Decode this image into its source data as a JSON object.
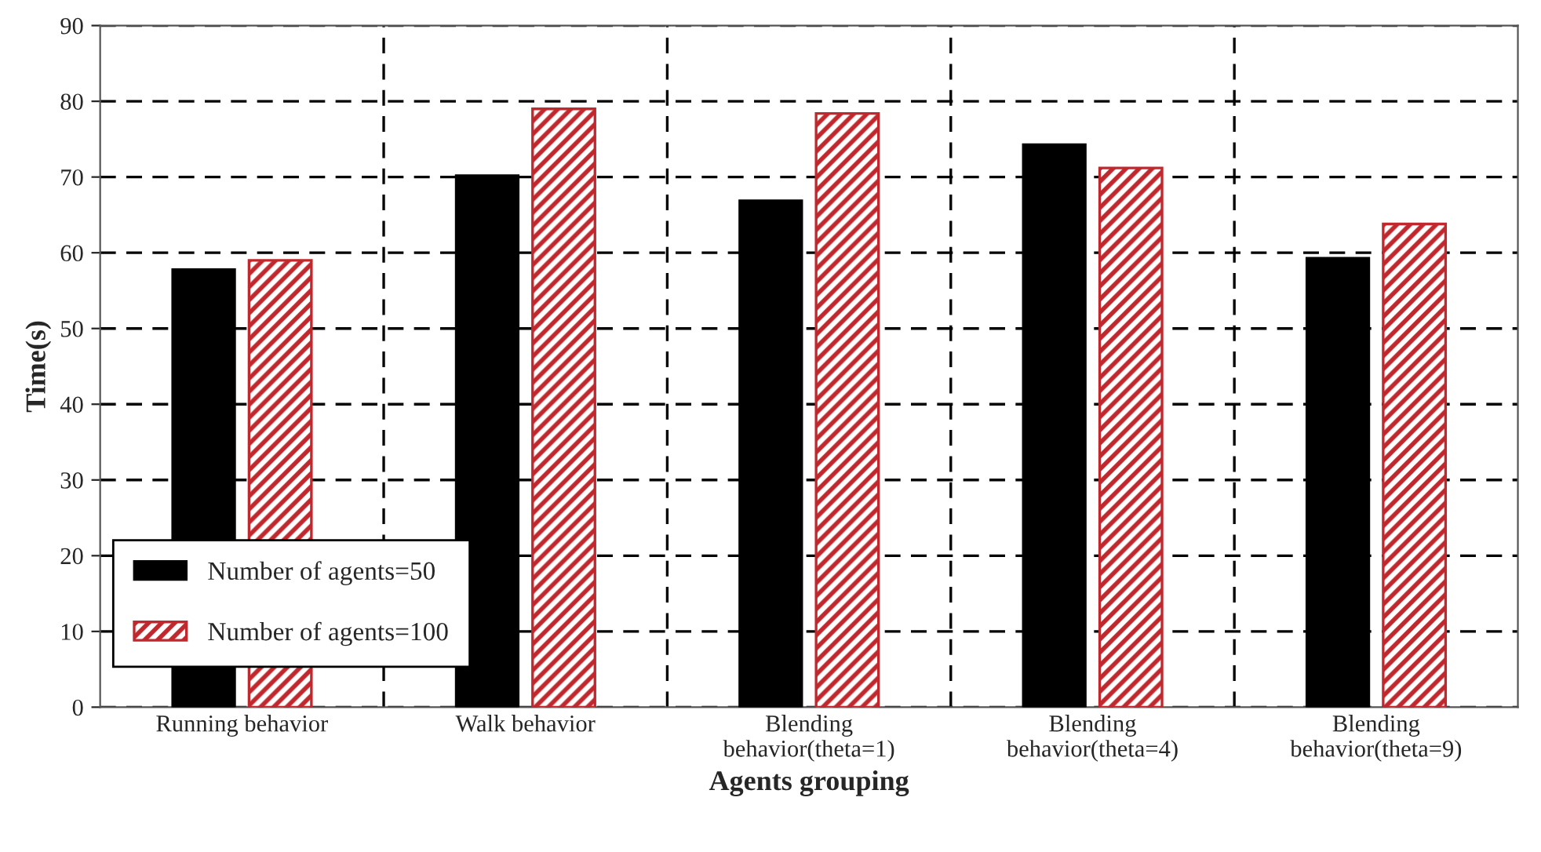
{
  "chart_data": {
    "type": "bar",
    "xlabel": "Agents grouping",
    "ylabel": "Time(s)",
    "categories": [
      "Running behavior",
      "Walk behavior",
      "Blending\nbehavior(theta=1)",
      "Blending\nbehavior(theta=4)",
      "Blending\nbehavior(theta=9)"
    ],
    "series": [
      {
        "name": "Number of agents=50",
        "color": "#000000",
        "values": [
          57.8,
          70.2,
          66.9,
          74.3,
          59.3
        ]
      },
      {
        "name": "Number of agents=100",
        "color": "#c0282d",
        "values": [
          59.0,
          79.0,
          78.4,
          71.2,
          63.8
        ]
      }
    ],
    "ylim": [
      0,
      90
    ],
    "yticks": [
      0,
      10,
      20,
      30,
      40,
      50,
      60,
      70,
      80,
      90
    ],
    "grid": true,
    "legend": "bottom left"
  }
}
